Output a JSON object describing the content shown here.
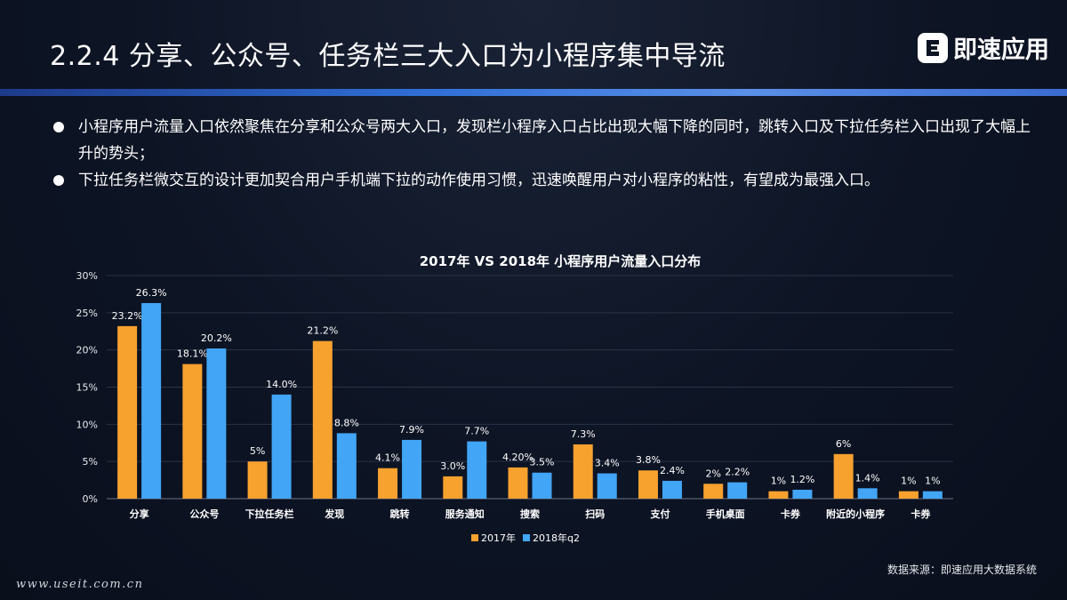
{
  "header": {
    "title": "2.2.4  分享、公众号、任务栏三大入口为小程序集中导流",
    "logo_text": "即速应用",
    "logo_icon": "brand-logo-icon"
  },
  "bullets": [
    "小程序用户流量入口依然聚焦在分享和公众号两大入口，发现栏小程序入口占比出现大幅下降的同时，跳转入口及下拉任务栏入口出现了大幅上升的势头；",
    "下拉任务栏微交互的设计更加契合用户手机端下拉的动作使用习惯，迅速唤醒用户对小程序的粘性，有望成为最强入口。"
  ],
  "chart_data": {
    "type": "bar",
    "title": "2017年 VS 2018年 小程序用户流量入口分布",
    "categories": [
      "分享",
      "公众号",
      "下拉任务栏",
      "发现",
      "跳转",
      "服务通知",
      "搜索",
      "扫码",
      "支付",
      "手机桌面",
      "卡券",
      "附近的小程序",
      "卡券"
    ],
    "series": [
      {
        "name": "2017年",
        "color": "#f7a12f",
        "values": [
          23.2,
          18.1,
          5,
          21.2,
          4.1,
          3.0,
          4.2,
          7.3,
          3.8,
          2,
          1,
          6,
          1
        ],
        "labels": [
          "23.2%",
          "18.1%",
          "5%",
          "21.2%",
          "4.1%",
          "3.0%",
          "4.20%",
          "7.3%",
          "3.8%",
          "2%",
          "1%",
          "6%",
          "1%"
        ]
      },
      {
        "name": "2018年q2",
        "color": "#42a5f5",
        "values": [
          26.3,
          20.2,
          14.0,
          8.8,
          7.9,
          7.7,
          3.5,
          3.4,
          2.4,
          2.2,
          1.2,
          1.4,
          1
        ],
        "labels": [
          "26.3%",
          "20.2%",
          "14.0%",
          "8.8%",
          "7.9%",
          "7.7%",
          "3.5%",
          "3.4%",
          "2.4%",
          "2.2%",
          "1.2%",
          "1.4%",
          "1%"
        ]
      }
    ],
    "y_ticks": [
      "0%",
      "5%",
      "10%",
      "15%",
      "20%",
      "25%",
      "30%"
    ],
    "ylim": [
      0,
      30
    ],
    "grid": true,
    "legend_position": "bottom"
  },
  "footer": {
    "url": "www.useit.com.cn",
    "source": "数据来源：即速应用大数据系统"
  }
}
